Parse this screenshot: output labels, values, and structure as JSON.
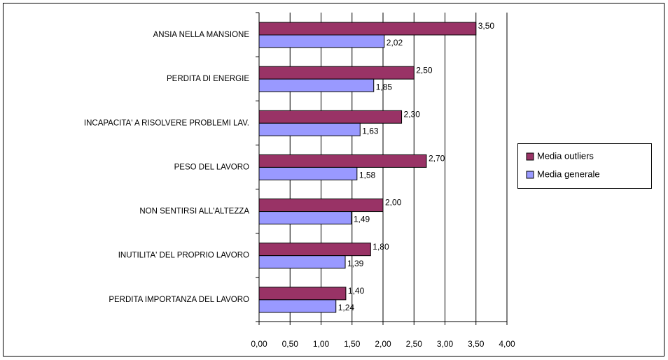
{
  "chart_data": {
    "type": "bar",
    "orientation": "horizontal",
    "categories": [
      "ANSIA NELLA MANSIONE",
      "PERDITA DI ENERGIE",
      "INCAPACITA' A RISOLVERE PROBLEMI LAV.",
      "PESO DEL LAVORO",
      "NON SENTIRSI ALL'ALTEZZA",
      "INUTILITA' DEL PROPRIO LAVORO",
      "PERDITA IMPORTANZA DEL LAVORO"
    ],
    "series": [
      {
        "name": "Media outliers",
        "color": "#993366",
        "values": [
          3.5,
          2.5,
          2.3,
          2.7,
          2.0,
          1.8,
          1.4
        ],
        "value_labels": [
          "3,50",
          "2,50",
          "2,30",
          "2,70",
          "2,00",
          "1,80",
          "1,40"
        ]
      },
      {
        "name": "Media generale",
        "color": "#9999ff",
        "values": [
          2.02,
          1.85,
          1.63,
          1.58,
          1.49,
          1.39,
          1.24
        ],
        "value_labels": [
          "2,02",
          "1,85",
          "1,63",
          "1,58",
          "1,49",
          "1,39",
          "1,24"
        ]
      }
    ],
    "xlim": [
      0,
      4
    ],
    "xticks": [
      {
        "value": 0,
        "label": "0,00"
      },
      {
        "value": 0.5,
        "label": "0,50"
      },
      {
        "value": 1,
        "label": "1,00"
      },
      {
        "value": 1.5,
        "label": "1,50"
      },
      {
        "value": 2,
        "label": "2,00"
      },
      {
        "value": 2.5,
        "label": "2,50"
      },
      {
        "value": 3,
        "label": "3,00"
      },
      {
        "value": 3.5,
        "label": "3,50"
      },
      {
        "value": 4,
        "label": "4,00"
      }
    ],
    "grid": true,
    "legend": "right"
  }
}
